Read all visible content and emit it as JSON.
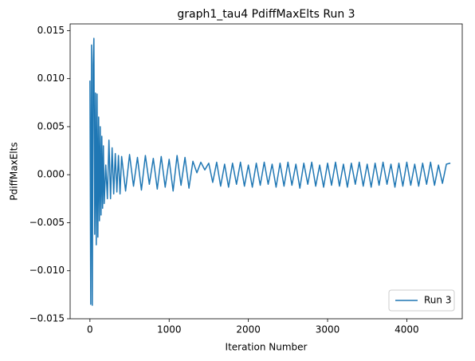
{
  "chart_data": {
    "type": "line",
    "title": "graph1_tau4 PdiffMaxElts Run 3",
    "xlabel": "Iteration Number",
    "ylabel": "PdiffMaxElts",
    "legend": "lower right",
    "x": [
      0,
      10,
      20,
      30,
      40,
      50,
      60,
      70,
      80,
      90,
      100,
      110,
      120,
      130,
      140,
      150,
      160,
      170,
      180,
      200,
      220,
      240,
      260,
      280,
      300,
      320,
      340,
      360,
      380,
      400,
      450,
      500,
      550,
      600,
      650,
      700,
      750,
      800,
      850,
      900,
      950,
      1000,
      1050,
      1100,
      1150,
      1200,
      1250,
      1300,
      1350,
      1400,
      1450,
      1500,
      1550,
      1600,
      1650,
      1700,
      1750,
      1800,
      1850,
      1900,
      1950,
      2000,
      2050,
      2100,
      2150,
      2200,
      2250,
      2300,
      2350,
      2400,
      2450,
      2500,
      2550,
      2600,
      2650,
      2700,
      2750,
      2800,
      2850,
      2900,
      2950,
      3000,
      3050,
      3100,
      3150,
      3200,
      3250,
      3300,
      3350,
      3400,
      3450,
      3500,
      3550,
      3600,
      3650,
      3700,
      3750,
      3800,
      3850,
      3900,
      3950,
      4000,
      4050,
      4100,
      4150,
      4200,
      4250,
      4300,
      4350,
      4400,
      4450,
      4500,
      4550
    ],
    "series": [
      {
        "name": "Run 3",
        "color": "#1f77b4",
        "values": [
          0.0098,
          -0.0135,
          0.0135,
          -0.0136,
          0.0115,
          0.0142,
          -0.0062,
          0.0085,
          -0.0073,
          0.0084,
          -0.0065,
          0.006,
          -0.0048,
          0.005,
          -0.0042,
          0.004,
          -0.0035,
          0.003,
          -0.003,
          0.001,
          -0.0025,
          0.0036,
          -0.0025,
          0.0028,
          -0.002,
          0.0022,
          -0.0018,
          0.002,
          -0.002,
          0.0019,
          -0.0017,
          0.0021,
          -0.0012,
          0.0018,
          -0.0016,
          0.002,
          -0.001,
          0.0017,
          -0.0015,
          0.0019,
          -0.0013,
          0.0016,
          -0.0017,
          0.002,
          -0.0011,
          0.0018,
          -0.0014,
          0.0014,
          0.0002,
          0.0013,
          0.0005,
          0.0012,
          -0.0008,
          0.0013,
          -0.0012,
          0.0011,
          -0.0013,
          0.0012,
          -0.001,
          0.0013,
          -0.0012,
          0.001,
          -0.0013,
          0.0012,
          -0.0011,
          0.0013,
          -0.001,
          0.0011,
          -0.0013,
          0.0012,
          -0.0012,
          0.0013,
          -0.0011,
          0.0011,
          -0.0014,
          0.0012,
          -0.001,
          0.0013,
          -0.0012,
          0.001,
          -0.0013,
          0.0012,
          -0.0011,
          0.0013,
          -0.0012,
          0.0011,
          -0.0013,
          0.0012,
          -0.001,
          0.0013,
          -0.0012,
          0.0011,
          -0.0013,
          0.0012,
          -0.0011,
          0.0013,
          -0.001,
          0.0011,
          -0.0013,
          0.0012,
          -0.0012,
          0.0013,
          -0.0011,
          0.0011,
          -0.0012,
          0.0012,
          -0.001,
          0.0013,
          -0.0011,
          0.001,
          -0.0009,
          0.0011,
          0.0012
        ]
      }
    ],
    "xlim": [
      -250,
      4700
    ],
    "ylim": [
      -0.015,
      0.0157
    ],
    "xticks": [
      0,
      1000,
      2000,
      3000,
      4000
    ],
    "yticks": [
      {
        "value": -0.015,
        "label": "−0.015"
      },
      {
        "value": -0.01,
        "label": "−0.010"
      },
      {
        "value": -0.005,
        "label": "−0.005"
      },
      {
        "value": 0,
        "label": "0.000"
      },
      {
        "value": 0.005,
        "label": "0.005"
      },
      {
        "value": 0.01,
        "label": "0.010"
      },
      {
        "value": 0.015,
        "label": "0.015"
      }
    ]
  }
}
